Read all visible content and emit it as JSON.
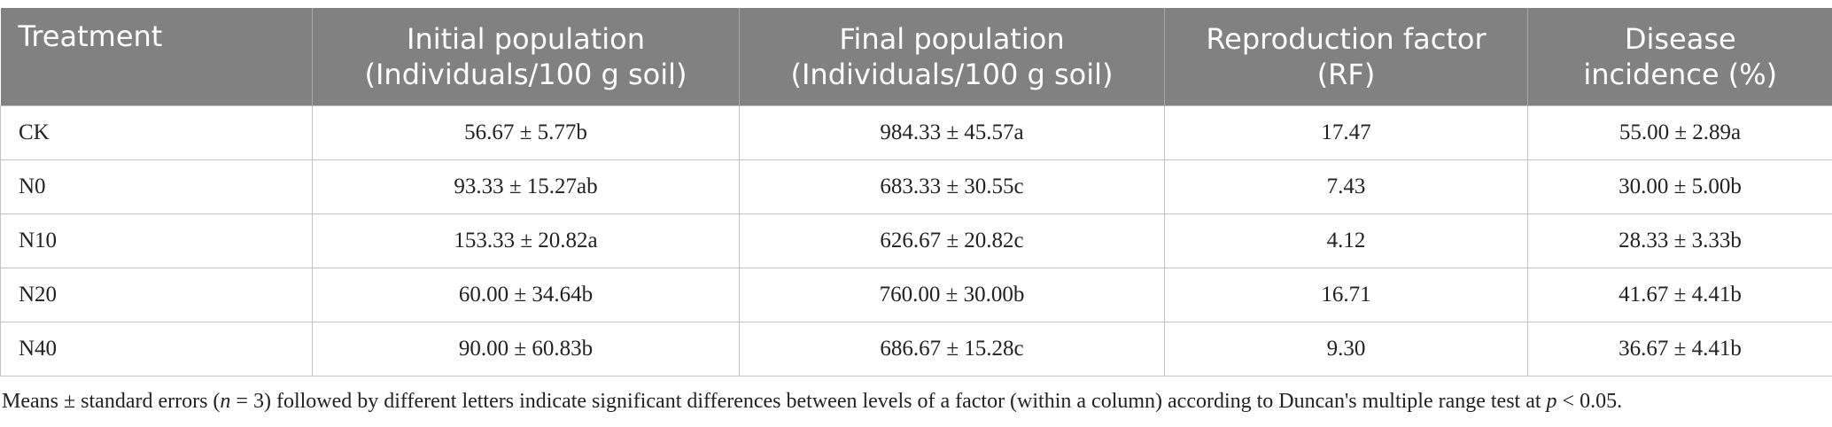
{
  "table": {
    "header": [
      "Treatment",
      "Initial population\n(Individuals/100 g soil)",
      "Final population\n(Individuals/100 g soil)",
      "Reproduction factor\n(RF)",
      "Disease\nincidence (%)"
    ],
    "rows": [
      [
        "CK",
        "56.67 ± 5.77b",
        "984.33 ± 45.57a",
        "17.47",
        "55.00 ± 2.89a"
      ],
      [
        "N0",
        "93.33 ± 15.27ab",
        "683.33 ± 30.55c",
        "7.43",
        "30.00 ± 5.00b"
      ],
      [
        "N10",
        "153.33 ± 20.82a",
        "626.67 ± 20.82c",
        "4.12",
        "28.33 ± 3.33b"
      ],
      [
        "N20",
        "60.00 ± 34.64b",
        "760.00 ± 30.00b",
        "16.71",
        "41.67 ± 4.41b"
      ],
      [
        "N40",
        "90.00 ± 60.83b",
        "686.67 ± 15.28c",
        "9.30",
        "36.67 ± 4.41b"
      ]
    ]
  },
  "footnote": [
    "Means ± standard errors (",
    "n",
    " = 3) followed by different letters indicate significant differences between levels of a factor (within a column) according to Duncan's multiple range test at ",
    "p",
    " < 0.05."
  ]
}
